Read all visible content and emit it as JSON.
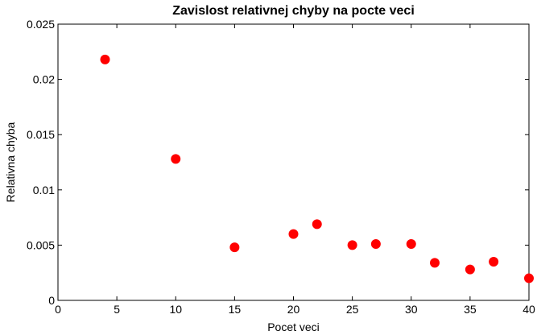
{
  "chart_data": {
    "type": "scatter",
    "title": "Zavislost relativnej chyby na pocte veci",
    "xlabel": "Pocet veci",
    "ylabel": "Relativna chyba",
    "xlim": [
      0,
      40
    ],
    "ylim": [
      0,
      0.025
    ],
    "xticks": [
      "0",
      "5",
      "10",
      "15",
      "20",
      "25",
      "30",
      "35",
      "40"
    ],
    "yticks": [
      "0",
      "0.005",
      "0.01",
      "0.015",
      "0.02",
      "0.025"
    ],
    "grid": false,
    "marker_color": "#ff0000",
    "points": [
      {
        "x": 4,
        "y": 0.0218
      },
      {
        "x": 10,
        "y": 0.0128
      },
      {
        "x": 15,
        "y": 0.0048
      },
      {
        "x": 20,
        "y": 0.006
      },
      {
        "x": 22,
        "y": 0.0069
      },
      {
        "x": 25,
        "y": 0.005
      },
      {
        "x": 27,
        "y": 0.0051
      },
      {
        "x": 30,
        "y": 0.0051
      },
      {
        "x": 32,
        "y": 0.0034
      },
      {
        "x": 35,
        "y": 0.0028
      },
      {
        "x": 37,
        "y": 0.0035
      },
      {
        "x": 40,
        "y": 0.002
      }
    ]
  }
}
